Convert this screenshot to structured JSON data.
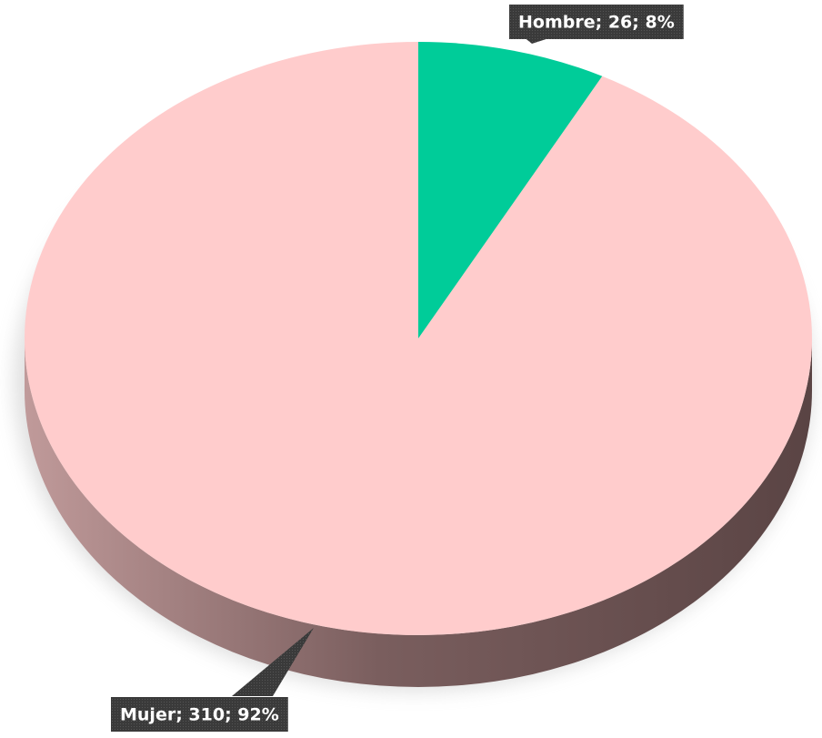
{
  "chart_data": {
    "type": "pie",
    "pie3d": true,
    "categories": [
      "Hombre",
      "Mujer"
    ],
    "values": [
      26,
      310
    ],
    "value_labels": [
      "Hombre; 26; 8%",
      "Mujer; 310; 92%"
    ],
    "colors": [
      "#00cc99",
      "#ffcccc"
    ]
  }
}
